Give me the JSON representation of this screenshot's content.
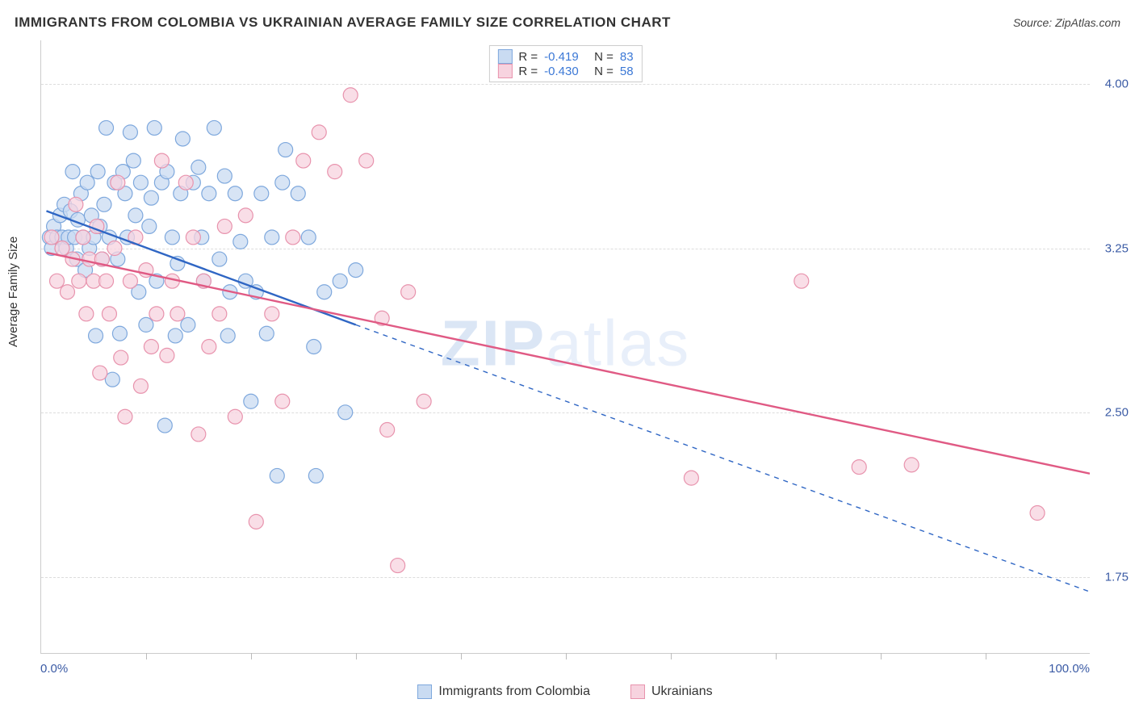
{
  "title": "IMMIGRANTS FROM COLOMBIA VS UKRAINIAN AVERAGE FAMILY SIZE CORRELATION CHART",
  "source_label": "Source: ",
  "source_name": "ZipAtlas.com",
  "yaxis_label": "Average Family Size",
  "watermark_bold": "ZIP",
  "watermark_rest": "atlas",
  "chart": {
    "type": "scatter",
    "xlim": [
      0,
      100
    ],
    "ylim": [
      1.4,
      4.2
    ],
    "ygrid": [
      1.75,
      2.5,
      3.25,
      4.0
    ],
    "ytick_labels": [
      "1.75",
      "2.50",
      "3.25",
      "4.00"
    ],
    "xtick_positions": [
      10,
      20,
      30,
      40,
      50,
      60,
      70,
      80,
      90
    ],
    "xmin_label": "0.0%",
    "xmax_label": "100.0%",
    "marker_radius": 9,
    "marker_stroke_width": 1.2,
    "series": [
      {
        "name": "Immigrants from Colombia",
        "R": "-0.419",
        "N": "83",
        "fill": "#c9dbf2",
        "stroke": "#7ea8dd",
        "fit_color": "#2f66c4",
        "fit_width": 2.4,
        "fit": {
          "x1": 0.5,
          "y1": 3.42,
          "x2": 30,
          "y2": 2.9
        },
        "fit_ext_dash": {
          "x1": 30,
          "y1": 2.9,
          "x2": 100,
          "y2": 1.68
        },
        "points": [
          [
            0.8,
            3.3
          ],
          [
            1.0,
            3.25
          ],
          [
            1.2,
            3.35
          ],
          [
            1.5,
            3.3
          ],
          [
            1.8,
            3.4
          ],
          [
            2.0,
            3.3
          ],
          [
            2.2,
            3.45
          ],
          [
            2.4,
            3.25
          ],
          [
            2.6,
            3.3
          ],
          [
            2.8,
            3.42
          ],
          [
            3.0,
            3.6
          ],
          [
            3.2,
            3.3
          ],
          [
            3.4,
            3.2
          ],
          [
            3.5,
            3.38
          ],
          [
            3.8,
            3.5
          ],
          [
            4.0,
            3.3
          ],
          [
            4.2,
            3.15
          ],
          [
            4.4,
            3.55
          ],
          [
            4.6,
            3.25
          ],
          [
            4.8,
            3.4
          ],
          [
            5.0,
            3.3
          ],
          [
            5.2,
            2.85
          ],
          [
            5.4,
            3.6
          ],
          [
            5.6,
            3.35
          ],
          [
            5.8,
            3.2
          ],
          [
            6.0,
            3.45
          ],
          [
            6.2,
            3.8
          ],
          [
            6.5,
            3.3
          ],
          [
            6.8,
            2.65
          ],
          [
            7.0,
            3.55
          ],
          [
            7.3,
            3.2
          ],
          [
            7.5,
            2.86
          ],
          [
            7.8,
            3.6
          ],
          [
            8.0,
            3.5
          ],
          [
            8.2,
            3.3
          ],
          [
            8.5,
            3.78
          ],
          [
            8.8,
            3.65
          ],
          [
            9.0,
            3.4
          ],
          [
            9.3,
            3.05
          ],
          [
            9.5,
            3.55
          ],
          [
            10.0,
            2.9
          ],
          [
            10.3,
            3.35
          ],
          [
            10.5,
            3.48
          ],
          [
            10.8,
            3.8
          ],
          [
            11.0,
            3.1
          ],
          [
            11.5,
            3.55
          ],
          [
            11.8,
            2.44
          ],
          [
            12.0,
            3.6
          ],
          [
            12.5,
            3.3
          ],
          [
            12.8,
            2.85
          ],
          [
            13.0,
            3.18
          ],
          [
            13.3,
            3.5
          ],
          [
            13.5,
            3.75
          ],
          [
            14.0,
            2.9
          ],
          [
            14.5,
            3.55
          ],
          [
            15.0,
            3.62
          ],
          [
            15.3,
            3.3
          ],
          [
            15.5,
            3.1
          ],
          [
            16.0,
            3.5
          ],
          [
            16.5,
            3.8
          ],
          [
            17.0,
            3.2
          ],
          [
            17.5,
            3.58
          ],
          [
            17.8,
            2.85
          ],
          [
            18.0,
            3.05
          ],
          [
            18.5,
            3.5
          ],
          [
            19.0,
            3.28
          ],
          [
            19.5,
            3.1
          ],
          [
            20.0,
            2.55
          ],
          [
            20.5,
            3.05
          ],
          [
            21.0,
            3.5
          ],
          [
            21.5,
            2.86
          ],
          [
            22.0,
            3.3
          ],
          [
            22.5,
            2.21
          ],
          [
            23.0,
            3.55
          ],
          [
            23.3,
            3.7
          ],
          [
            24.5,
            3.5
          ],
          [
            25.5,
            3.3
          ],
          [
            26.0,
            2.8
          ],
          [
            26.2,
            2.21
          ],
          [
            27.0,
            3.05
          ],
          [
            28.5,
            3.1
          ],
          [
            29.0,
            2.5
          ],
          [
            30.0,
            3.15
          ]
        ]
      },
      {
        "name": "Ukrainians",
        "R": "-0.430",
        "N": "58",
        "fill": "#f7d3df",
        "stroke": "#e893ad",
        "fit_color": "#e05a84",
        "fit_width": 2.4,
        "fit": {
          "x1": 0.5,
          "y1": 3.23,
          "x2": 100,
          "y2": 2.22
        },
        "points": [
          [
            1.0,
            3.3
          ],
          [
            1.5,
            3.1
          ],
          [
            2.0,
            3.25
          ],
          [
            2.5,
            3.05
          ],
          [
            3.0,
            3.2
          ],
          [
            3.3,
            3.45
          ],
          [
            3.6,
            3.1
          ],
          [
            4.0,
            3.3
          ],
          [
            4.3,
            2.95
          ],
          [
            4.6,
            3.2
          ],
          [
            5.0,
            3.1
          ],
          [
            5.3,
            3.35
          ],
          [
            5.6,
            2.68
          ],
          [
            5.8,
            3.2
          ],
          [
            6.2,
            3.1
          ],
          [
            6.5,
            2.95
          ],
          [
            7.0,
            3.25
          ],
          [
            7.3,
            3.55
          ],
          [
            7.6,
            2.75
          ],
          [
            8.0,
            2.48
          ],
          [
            8.5,
            3.1
          ],
          [
            9.0,
            3.3
          ],
          [
            9.5,
            2.62
          ],
          [
            10.0,
            3.15
          ],
          [
            10.5,
            2.8
          ],
          [
            11.0,
            2.95
          ],
          [
            11.5,
            3.65
          ],
          [
            12.0,
            2.76
          ],
          [
            12.5,
            3.1
          ],
          [
            13.0,
            2.95
          ],
          [
            13.8,
            3.55
          ],
          [
            14.5,
            3.3
          ],
          [
            15.0,
            2.4
          ],
          [
            15.5,
            3.1
          ],
          [
            16.0,
            2.8
          ],
          [
            17.0,
            2.95
          ],
          [
            17.5,
            3.35
          ],
          [
            18.5,
            2.48
          ],
          [
            19.5,
            3.4
          ],
          [
            20.5,
            2.0
          ],
          [
            22.0,
            2.95
          ],
          [
            23.0,
            2.55
          ],
          [
            24.0,
            3.3
          ],
          [
            25.0,
            3.65
          ],
          [
            26.5,
            3.78
          ],
          [
            28.0,
            3.6
          ],
          [
            29.5,
            3.95
          ],
          [
            31.0,
            3.65
          ],
          [
            32.5,
            2.93
          ],
          [
            33.0,
            2.42
          ],
          [
            34.0,
            1.8
          ],
          [
            35.0,
            3.05
          ],
          [
            36.5,
            2.55
          ],
          [
            62.0,
            2.2
          ],
          [
            72.5,
            3.1
          ],
          [
            83.0,
            2.26
          ],
          [
            95.0,
            2.04
          ],
          [
            78.0,
            2.25
          ]
        ]
      }
    ]
  },
  "legend_top": {
    "r_label": "R =",
    "n_label": "N ="
  },
  "legend_bottom": [
    {
      "label": "Immigrants from Colombia",
      "fill": "#c9dbf2",
      "stroke": "#7ea8dd"
    },
    {
      "label": "Ukrainians",
      "fill": "#f7d3df",
      "stroke": "#e893ad"
    }
  ],
  "colors": {
    "value_text": "#3b78d6",
    "grid": "#dddddd",
    "axis": "#cccccc",
    "background": "#ffffff"
  }
}
